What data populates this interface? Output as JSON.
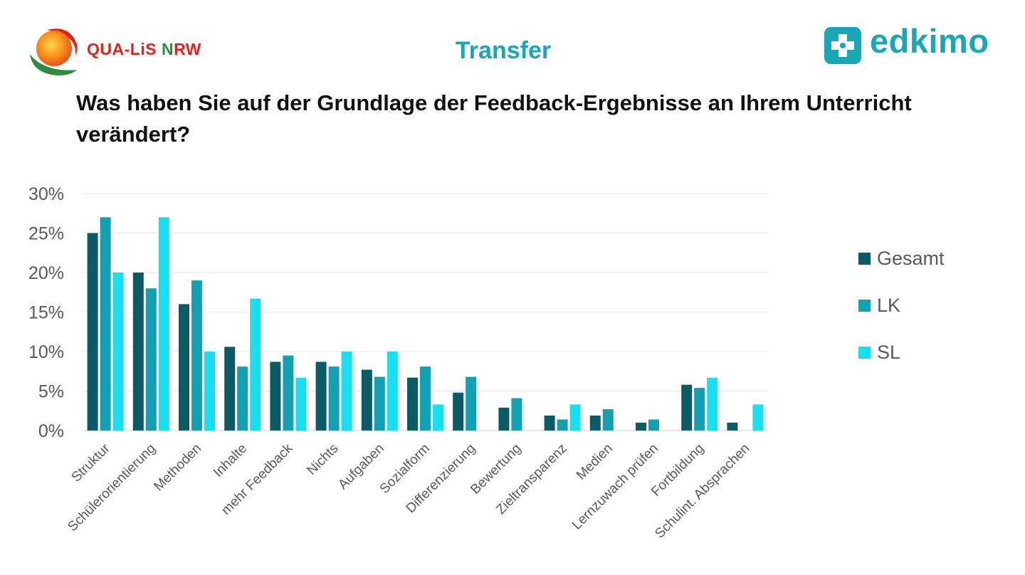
{
  "header": {
    "left_logo_text": {
      "part1": "QUA-LiS ",
      "part2": "N",
      "part3": "RW"
    },
    "title": "Transfer",
    "right_logo_text": "edkimo"
  },
  "question": "Was haben Sie auf der Grundlage der Feedback-Ergebnisse an Ihrem Unterricht verändert?",
  "colors": {
    "gesamt": "#0b5b66",
    "lk": "#12a1b3",
    "sl": "#16e0ef",
    "accent": "#17a7b8",
    "logo_red": "#e3221b",
    "logo_green": "#2e8b3d"
  },
  "chart_data": {
    "type": "bar",
    "title": "",
    "xlabel": "",
    "ylabel": "",
    "ylim": [
      0,
      30
    ],
    "yticks": [
      0,
      5,
      10,
      15,
      20,
      25,
      30
    ],
    "ytick_suffix": "%",
    "grid": true,
    "legend_position": "right",
    "categories": [
      "Struktur",
      "Schülerorientierung",
      "Methoden",
      "Inhalte",
      "mehr Feedback",
      "Nichts",
      "Aufgaben",
      "Sozialform",
      "Differenzierung",
      "Bewertung",
      "Zieltransparenz",
      "Medien",
      "Lernzuwach prüfen",
      "Fortbildung",
      "Schulint. Absprachen"
    ],
    "series": [
      {
        "name": "Gesamt",
        "color": "#0b5b66",
        "values": [
          25,
          20,
          16,
          10.6,
          8.7,
          8.7,
          7.7,
          6.7,
          4.8,
          2.9,
          1.9,
          1.9,
          1.0,
          5.8,
          1.0
        ]
      },
      {
        "name": "LK",
        "color": "#12a1b3",
        "values": [
          27,
          18,
          19,
          8.1,
          9.5,
          8.1,
          6.8,
          8.1,
          6.8,
          4.1,
          1.4,
          2.7,
          1.4,
          5.4,
          0
        ]
      },
      {
        "name": "SL",
        "color": "#16e0ef",
        "values": [
          20,
          27,
          10,
          16.7,
          6.7,
          10,
          10,
          3.3,
          0,
          0,
          3.3,
          0,
          0,
          6.7,
          3.3
        ]
      }
    ]
  }
}
